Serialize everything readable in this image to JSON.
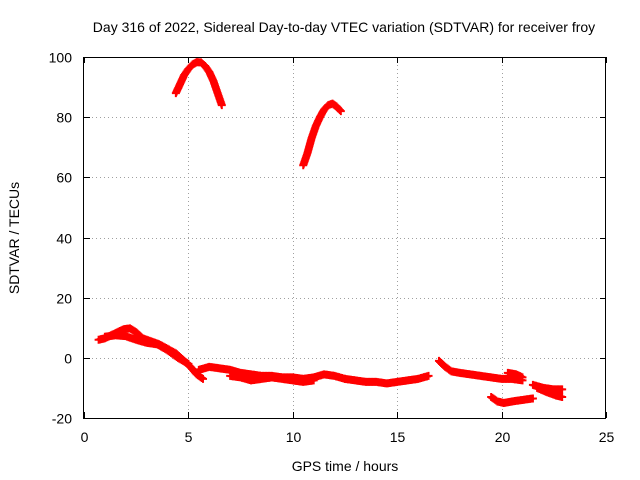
{
  "chart_data": {
    "type": "scatter",
    "title": "Day 316 of 2022, Sidereal Day-to-day VTEC variation (SDTVAR) for receiver froy",
    "xlabel": "GPS time / hours",
    "ylabel": "SDTVAR / TECUs",
    "xlim": [
      0,
      25
    ],
    "ylim": [
      -20,
      100
    ],
    "xticks": [
      0,
      5,
      10,
      15,
      20,
      25
    ],
    "yticks": [
      -20,
      0,
      20,
      40,
      60,
      80,
      100
    ],
    "grid": true,
    "marker": "+",
    "color": "#ff0000",
    "series": [
      {
        "name": "arc-high-1",
        "points": [
          [
            4.4,
            88
          ],
          [
            4.6,
            91
          ],
          [
            4.8,
            94
          ],
          [
            5.0,
            96
          ],
          [
            5.2,
            97.5
          ],
          [
            5.4,
            98.3
          ],
          [
            5.6,
            98.2
          ],
          [
            5.8,
            97
          ],
          [
            6.0,
            95
          ],
          [
            6.2,
            92
          ],
          [
            6.4,
            88
          ],
          [
            6.6,
            84
          ]
        ]
      },
      {
        "name": "arc-high-2",
        "points": [
          [
            10.5,
            64
          ],
          [
            10.7,
            68
          ],
          [
            10.9,
            73
          ],
          [
            11.1,
            77
          ],
          [
            11.3,
            80
          ],
          [
            11.5,
            82.5
          ],
          [
            11.7,
            84
          ],
          [
            11.9,
            84.5
          ],
          [
            12.1,
            83.5
          ],
          [
            12.3,
            82
          ]
        ]
      },
      {
        "name": "low-a",
        "points": [
          [
            0.7,
            6
          ],
          [
            1.0,
            6.5
          ],
          [
            1.3,
            7.5
          ],
          [
            1.6,
            8.5
          ],
          [
            1.9,
            9.5
          ],
          [
            2.2,
            9.8
          ],
          [
            2.5,
            8.5
          ],
          [
            2.8,
            6.5
          ],
          [
            3.2,
            5.5
          ],
          [
            3.6,
            4.5
          ],
          [
            4.0,
            3
          ],
          [
            4.4,
            1.5
          ],
          [
            4.8,
            -1
          ],
          [
            5.1,
            -3
          ],
          [
            5.4,
            -5.5
          ],
          [
            5.7,
            -7
          ]
        ]
      },
      {
        "name": "low-b",
        "points": [
          [
            1.0,
            7
          ],
          [
            1.5,
            7.5
          ],
          [
            2.0,
            7.2
          ],
          [
            2.5,
            6
          ],
          [
            3.0,
            5
          ],
          [
            3.5,
            4.5
          ],
          [
            4.0,
            2.5
          ],
          [
            4.5,
            0
          ],
          [
            5.0,
            -2
          ]
        ]
      },
      {
        "name": "low-c",
        "points": [
          [
            5.5,
            -4
          ],
          [
            6.0,
            -3
          ],
          [
            6.5,
            -3.5
          ],
          [
            7.0,
            -4
          ],
          [
            7.5,
            -5
          ],
          [
            8.0,
            -5.5
          ],
          [
            8.5,
            -6
          ],
          [
            9.0,
            -6
          ],
          [
            9.5,
            -6.5
          ],
          [
            10.0,
            -6.5
          ],
          [
            10.5,
            -7
          ],
          [
            11.0,
            -6.5
          ],
          [
            11.5,
            -5.5
          ],
          [
            12.0,
            -6
          ],
          [
            12.5,
            -7
          ]
        ]
      },
      {
        "name": "low-d",
        "points": [
          [
            7.0,
            -6
          ],
          [
            7.5,
            -6.5
          ],
          [
            8.0,
            -7.5
          ],
          [
            8.5,
            -7
          ],
          [
            9.0,
            -6.5
          ],
          [
            9.5,
            -7
          ],
          [
            10.0,
            -7.5
          ],
          [
            10.5,
            -8
          ],
          [
            11.0,
            -7.5
          ]
        ]
      },
      {
        "name": "low-e",
        "points": [
          [
            12.5,
            -7
          ],
          [
            13.0,
            -7.5
          ],
          [
            13.5,
            -8
          ],
          [
            14.0,
            -8
          ],
          [
            14.5,
            -8.5
          ],
          [
            15.0,
            -8
          ],
          [
            15.5,
            -7.5
          ],
          [
            16.0,
            -7
          ],
          [
            16.5,
            -6
          ]
        ]
      },
      {
        "name": "low-f",
        "points": [
          [
            17.0,
            -1
          ],
          [
            17.3,
            -3
          ],
          [
            17.6,
            -4.5
          ],
          [
            18.0,
            -5
          ],
          [
            18.5,
            -5.5
          ],
          [
            19.0,
            -6
          ],
          [
            19.5,
            -6.5
          ],
          [
            20.0,
            -7
          ],
          [
            20.5,
            -7
          ],
          [
            21.0,
            -7.5
          ]
        ]
      },
      {
        "name": "low-g",
        "points": [
          [
            20.3,
            -5
          ],
          [
            20.7,
            -5.5
          ],
          [
            21.0,
            -6.5
          ]
        ]
      },
      {
        "name": "low-h",
        "points": [
          [
            19.5,
            -13
          ],
          [
            19.8,
            -14.5
          ],
          [
            20.1,
            -15
          ],
          [
            20.5,
            -14.5
          ],
          [
            21.0,
            -14
          ],
          [
            21.5,
            -13.5
          ]
        ]
      },
      {
        "name": "low-i",
        "points": [
          [
            21.5,
            -9
          ],
          [
            22.0,
            -10
          ],
          [
            22.5,
            -10.5
          ],
          [
            22.9,
            -10.5
          ]
        ]
      },
      {
        "name": "low-j",
        "points": [
          [
            21.7,
            -10
          ],
          [
            22.2,
            -11.5
          ],
          [
            22.6,
            -12.5
          ],
          [
            22.9,
            -13
          ]
        ]
      }
    ]
  }
}
